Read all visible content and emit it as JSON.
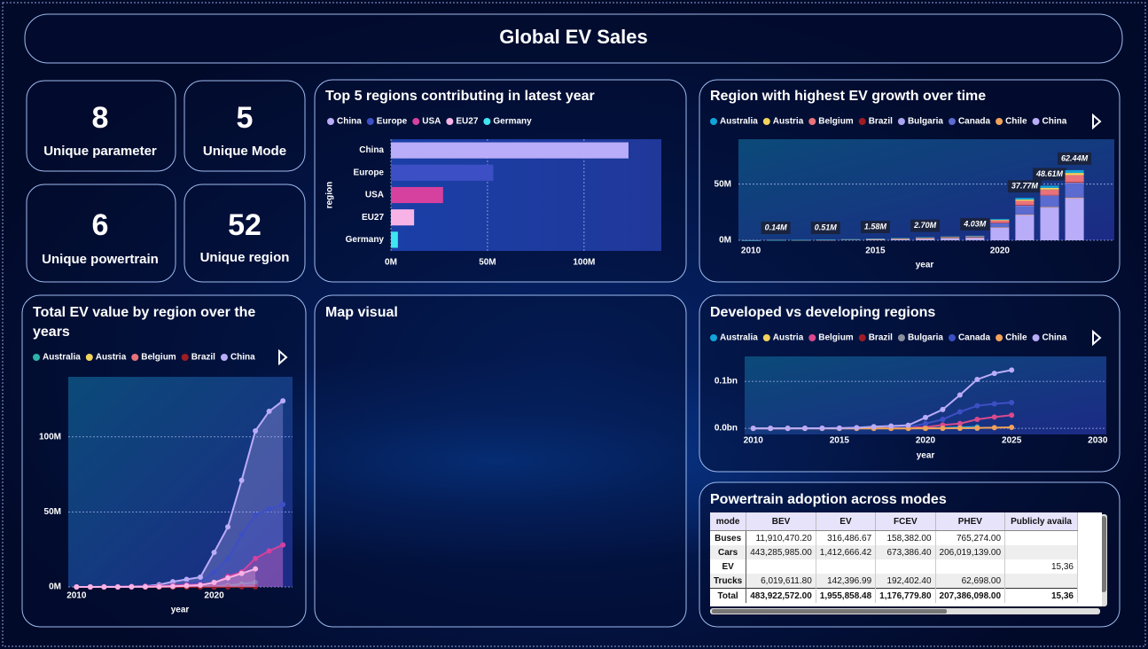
{
  "title": "Global EV Sales",
  "kpis": [
    {
      "value": 8,
      "label": "Unique parameter"
    },
    {
      "value": 5,
      "label": "Unique Mode"
    },
    {
      "value": 6,
      "label": "Unique powertrain"
    },
    {
      "value": 52,
      "label": "Unique region"
    }
  ],
  "chart_data": [
    {
      "type": "hbar",
      "title": "Top 5 regions contributing in latest year",
      "y_label": "region",
      "categories": [
        "China",
        "Europe",
        "USA",
        "EU27",
        "Germany"
      ],
      "values": [
        123000000,
        53000000,
        27000000,
        12000000,
        3600000
      ],
      "colors": [
        "#b9acf8",
        "#3d4fc4",
        "#d6409f",
        "#f7b3e6",
        "#3fe6f0"
      ],
      "xlim": [
        0,
        140000000
      ],
      "xticks": [
        {
          "value": 0,
          "label": "0M"
        },
        {
          "value": 50000000,
          "label": "50M"
        },
        {
          "value": 100000000,
          "label": "100M"
        }
      ],
      "grid": true
    },
    {
      "type": "stacked_bar",
      "title": "Region with highest EV growth over time",
      "x_label": "year",
      "x": [
        2010,
        2011,
        2012,
        2013,
        2014,
        2015,
        2016,
        2017,
        2018,
        2019,
        2020,
        2021,
        2022,
        2023
      ],
      "series": [
        {
          "name": "Australia",
          "color": "#12a4d9",
          "values": [
            800,
            5600,
            12000,
            20400,
            36000,
            63200,
            80000,
            108000,
            136000,
            161200,
            760000,
            1510800,
            1944400,
            2497600
          ]
        },
        {
          "name": "Austria",
          "color": "#f2d35b",
          "values": [
            600,
            4200,
            9000,
            15300,
            27000,
            47400,
            60000,
            81000,
            102000,
            120900,
            570000,
            1133100,
            1458300,
            1873200
          ]
        },
        {
          "name": "Belgium",
          "color": "#e8727a",
          "values": [
            2000,
            14000,
            30000,
            51000,
            90000,
            158000,
            200000,
            270000,
            340000,
            403000,
            1900000,
            3777000,
            4861000,
            6244000
          ]
        },
        {
          "name": "Brazil",
          "color": "#9e1c24",
          "values": [
            200,
            1400,
            3000,
            5100,
            9000,
            15800,
            20000,
            27000,
            34000,
            40300,
            190000,
            377700,
            486100,
            624400
          ]
        },
        {
          "name": "Bulgaria",
          "color": "#a9a4f0",
          "values": [
            200,
            1400,
            3000,
            5100,
            9000,
            15800,
            20000,
            27000,
            34000,
            40300,
            190000,
            377700,
            486100,
            624400
          ]
        },
        {
          "name": "Canada",
          "color": "#5b6bd0",
          "values": [
            4000,
            28000,
            60000,
            102000,
            180000,
            316000,
            400000,
            540000,
            680000,
            806000,
            3800000,
            7554000,
            9722000,
            12488000
          ]
        },
        {
          "name": "Chile",
          "color": "#f0a259",
          "values": [
            200,
            1400,
            3000,
            5100,
            9000,
            15800,
            20000,
            27000,
            34000,
            40300,
            190000,
            377700,
            486100,
            624400
          ]
        },
        {
          "name": "China",
          "color": "#b9acf8",
          "values": [
            12000,
            84000,
            180000,
            306000,
            540000,
            948000,
            1200000,
            1620000,
            2040000,
            2418000,
            11400000,
            22662000,
            29166000,
            37464000
          ]
        }
      ],
      "totals": [
        null,
        140000,
        null,
        510000,
        null,
        1580000,
        null,
        2700000,
        null,
        4030000,
        null,
        37770000,
        48610000,
        62440000
      ],
      "total_labels": [
        null,
        "0.14M",
        null,
        "0.51M",
        null,
        "1.58M",
        null,
        "2.70M",
        null,
        "4.03M",
        null,
        "37.77M",
        "48.61M",
        "62.44M"
      ],
      "xlim": [
        2009.5,
        2024.6
      ],
      "ylim": [
        0,
        90000000
      ],
      "xticks": [
        2010,
        2015,
        2020
      ],
      "yticks": [
        {
          "value": 0,
          "label": "0M"
        },
        {
          "value": 50000000,
          "label": "50M"
        }
      ],
      "grid": true
    },
    {
      "type": "area",
      "title": "Total EV value by region over the years",
      "x_label": "year",
      "x": [
        2010,
        2011,
        2012,
        2013,
        2014,
        2015,
        2016,
        2017,
        2018,
        2019,
        2020,
        2021,
        2022,
        2023,
        2024,
        2025
      ],
      "series": [
        {
          "name": "Australia",
          "color": "#2bb5a8",
          "values": [
            0,
            0,
            0,
            0,
            0,
            10000,
            20000,
            50000,
            100000,
            200000,
            500000,
            1000000,
            2000000,
            3000000,
            null,
            null
          ]
        },
        {
          "name": "Austria",
          "color": "#f2d35b",
          "values": [
            0,
            0,
            0,
            0,
            0,
            0,
            10000,
            20000,
            30000,
            50000,
            100000,
            150000,
            200000,
            250000,
            null,
            null
          ]
        },
        {
          "name": "Belgium",
          "color": "#e8727a",
          "values": [
            0,
            0,
            0,
            0,
            0,
            0,
            20000,
            40000,
            60000,
            100000,
            200000,
            300000,
            400000,
            500000,
            null,
            null
          ]
        },
        {
          "name": "Brazil",
          "color": "#9e1c24",
          "values": [
            0,
            0,
            0,
            0,
            0,
            0,
            5000,
            10000,
            15000,
            25000,
            50000,
            75000,
            100000,
            125000,
            null,
            null
          ]
        },
        {
          "name": "China",
          "color": "#b9acf8",
          "values": [
            10000,
            20000,
            40000,
            100000,
            300000,
            500000,
            1500000,
            3500000,
            5000000,
            6500000,
            23000000,
            40000000,
            71000000,
            104000000,
            117000000,
            124000000
          ]
        },
        {
          "name": "Europe",
          "color": "#3d4fc4",
          "values": [
            0,
            0,
            10000,
            50000,
            100000,
            300000,
            600000,
            1000000,
            2000000,
            3000000,
            10000000,
            19000000,
            35000000,
            48000000,
            52000000,
            55000000
          ]
        },
        {
          "name": "USA",
          "color": "#d6409f",
          "values": [
            10000,
            20000,
            50000,
            100000,
            200000,
            400000,
            600000,
            900000,
            1300000,
            1600000,
            2500000,
            7000000,
            10000000,
            19000000,
            24000000,
            28000000
          ]
        },
        {
          "name": "EU27",
          "color": "#f7b3e6",
          "values": [
            0,
            0,
            0,
            20000,
            50000,
            100000,
            200000,
            400000,
            800000,
            1200000,
            3000000,
            6000000,
            9000000,
            12000000,
            null,
            null
          ]
        }
      ],
      "xlim": [
        2009.4,
        2025.7
      ],
      "ylim": [
        0,
        140000000
      ],
      "xticks": [
        2010,
        2020
      ],
      "yticks": [
        {
          "value": 0,
          "label": "0M"
        },
        {
          "value": 50000000,
          "label": "50M"
        },
        {
          "value": 100000000,
          "label": "100M"
        }
      ],
      "grid": true
    },
    {
      "type": "line",
      "title": "Developed vs developing regions",
      "x_label": "year",
      "x": [
        2010,
        2011,
        2012,
        2013,
        2014,
        2015,
        2016,
        2017,
        2018,
        2019,
        2020,
        2021,
        2022,
        2023,
        2024,
        2025
      ],
      "series": [
        {
          "name": "Australia",
          "color": "#12a4d9",
          "values": [
            0,
            0,
            0,
            0,
            0,
            10000,
            20000,
            50000,
            100000,
            200000,
            500000,
            1000000,
            2000000,
            3000000,
            null,
            null
          ]
        },
        {
          "name": "Austria",
          "color": "#f2d35b",
          "values": [
            0,
            0,
            0,
            0,
            0,
            0,
            10000,
            20000,
            30000,
            50000,
            100000,
            150000,
            200000,
            250000,
            null,
            null
          ]
        },
        {
          "name": "Belgium",
          "color": "#d94a8c",
          "values": [
            10000,
            20000,
            50000,
            100000,
            200000,
            400000,
            600000,
            900000,
            1300000,
            1600000,
            2500000,
            7000000,
            10000000,
            19000000,
            24000000,
            28000000
          ]
        },
        {
          "name": "Brazil",
          "color": "#9e1c24",
          "values": [
            0,
            0,
            0,
            0,
            0,
            0,
            5000,
            10000,
            15000,
            25000,
            50000,
            75000,
            100000,
            125000,
            null,
            null
          ]
        },
        {
          "name": "Bulgaria",
          "color": "#8a8f9e",
          "values": [
            0,
            0,
            0,
            0,
            0,
            0,
            5000,
            10000,
            15000,
            25000,
            50000,
            75000,
            100000,
            125000,
            null,
            null
          ]
        },
        {
          "name": "Canada",
          "color": "#3d4fc4",
          "values": [
            0,
            0,
            10000,
            50000,
            100000,
            300000,
            600000,
            1000000,
            2000000,
            3000000,
            10000000,
            19000000,
            35000000,
            48000000,
            52000000,
            55000000
          ]
        },
        {
          "name": "Chile",
          "color": "#f0a259",
          "values": [
            0,
            0,
            0,
            0,
            0,
            0,
            0,
            0,
            0,
            10000,
            50000,
            200000,
            500000,
            1000000,
            1500000,
            2000000
          ]
        },
        {
          "name": "China",
          "color": "#b9acf8",
          "values": [
            10000,
            20000,
            40000,
            100000,
            300000,
            500000,
            1500000,
            3500000,
            5000000,
            6500000,
            23000000,
            40000000,
            71000000,
            104000000,
            117000000,
            124000000
          ]
        }
      ],
      "xlim": [
        2009.5,
        2030.5
      ],
      "ylim": [
        -13000000,
        153000000
      ],
      "xticks": [
        2010,
        2015,
        2020,
        2025,
        2030
      ],
      "yticks": [
        {
          "value": 0,
          "label": "0.0bn"
        },
        {
          "value": 100000000,
          "label": "0.1bn"
        }
      ],
      "grid": true
    }
  ],
  "map": {
    "title": "Map visual"
  },
  "table": {
    "title": "Powertrain adoption across modes",
    "columns": [
      "mode",
      "BEV",
      "EV",
      "FCEV",
      "PHEV",
      "Publicly availa"
    ],
    "rows": [
      [
        "Buses",
        "11,910,470.20",
        "316,486.67",
        "158,382.00",
        "765,274.00",
        null
      ],
      [
        "Cars",
        "443,285,985.00",
        "1,412,666.42",
        "673,386.40",
        "206,019,139.00",
        null
      ],
      [
        "EV",
        null,
        null,
        null,
        null,
        "15,36"
      ],
      [
        "Trucks",
        "6,019,611.80",
        "142,396.99",
        "192,402.40",
        "62,698.00",
        null
      ],
      [
        "Total",
        "483,922,572.00",
        "1,955,858.48",
        "1,176,779.80",
        "207,386,098.00",
        "15,36"
      ]
    ]
  }
}
